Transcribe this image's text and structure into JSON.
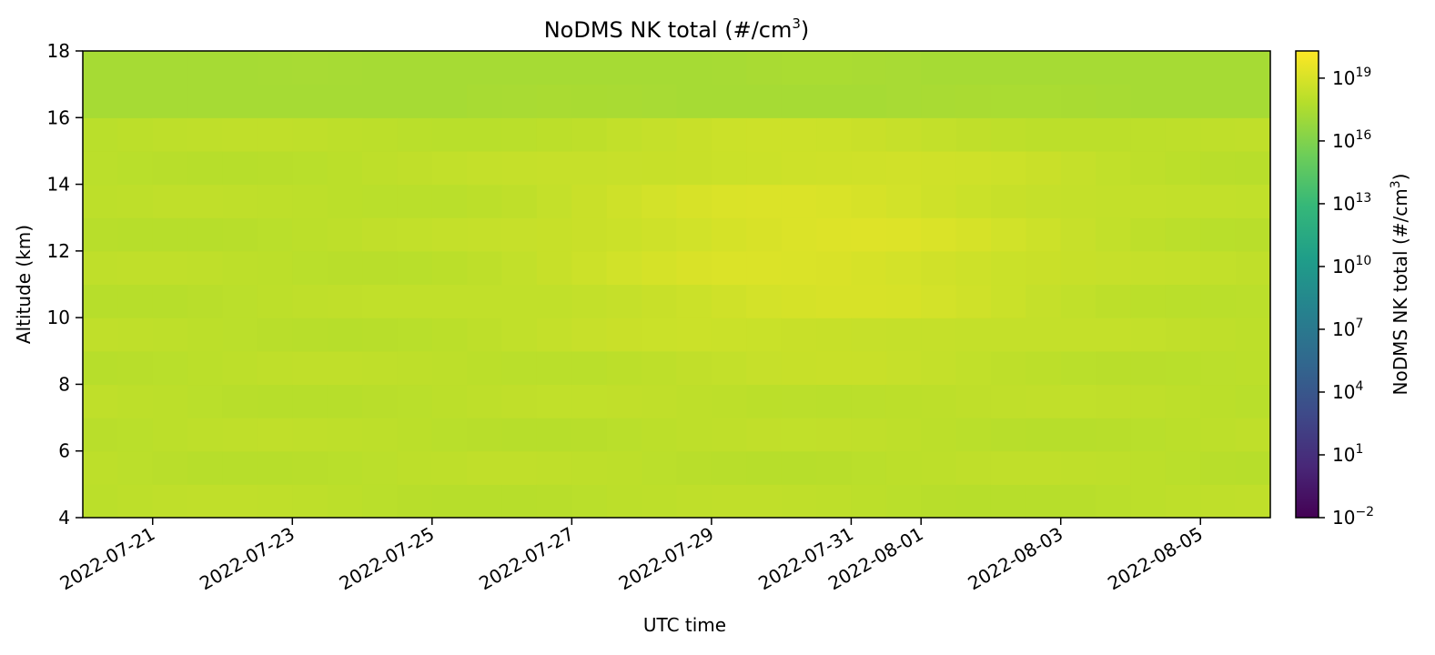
{
  "chart_data": {
    "type": "heatmap",
    "title": "NoDMS NK total (#/cm",
    "title_sup": "3",
    "title_end": ")",
    "xlabel": "UTC time",
    "ylabel": "Altitude (km)",
    "colorbar_label": "NoDMS NK total (#/cm",
    "colorbar_label_sup": "3",
    "colorbar_label_end": ")",
    "colormap": "viridis",
    "color_scale": "log",
    "color_range_log10": [
      -2,
      20.3
    ],
    "x_range": [
      "2022-07-20",
      "2022-08-06"
    ],
    "y_range": [
      4,
      18
    ],
    "x_ticks": [
      "2022-07-21",
      "2022-07-23",
      "2022-07-25",
      "2022-07-27",
      "2022-07-29",
      "2022-07-31",
      "2022-08-01",
      "2022-08-03",
      "2022-08-05"
    ],
    "y_ticks": [
      4,
      6,
      8,
      10,
      12,
      14,
      16,
      18
    ],
    "colorbar_ticks": [
      {
        "base": "10",
        "exp": "19",
        "log10": 19
      },
      {
        "base": "10",
        "exp": "16",
        "log10": 16
      },
      {
        "base": "10",
        "exp": "13",
        "log10": 13
      },
      {
        "base": "10",
        "exp": "10",
        "log10": 10
      },
      {
        "base": "10",
        "exp": "7",
        "log10": 7
      },
      {
        "base": "10",
        "exp": "4",
        "log10": 4
      },
      {
        "base": "10",
        "exp": "1",
        "log10": 1
      },
      {
        "base": "10",
        "exp": "−2",
        "log10": -2
      }
    ],
    "x_bins_approx": 34,
    "y_bins_approx": 14,
    "value_range_log10_observed": [
      17.3,
      19.4
    ],
    "grid": false
  }
}
